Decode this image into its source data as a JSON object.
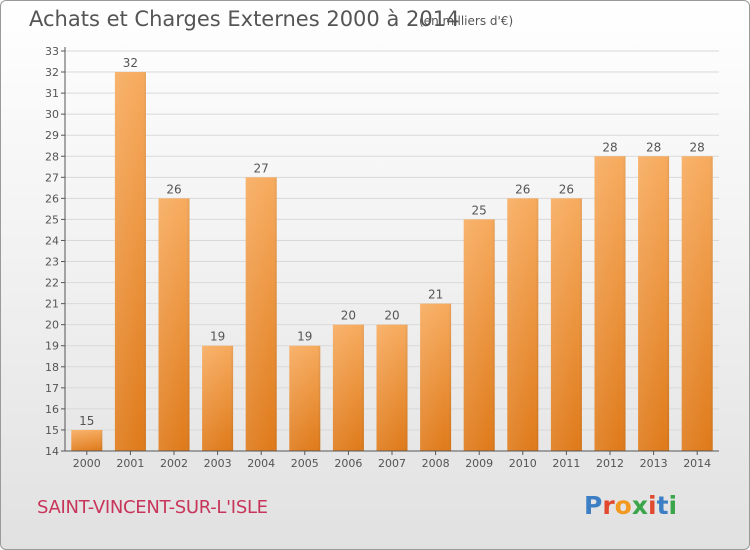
{
  "title": "Achats et Charges Externes 2000 à 2014",
  "unit_label": "(en milliers d'€)",
  "location": "SAINT-VINCENT-SUR-L'ISLE",
  "logo": {
    "text": "Proxiti",
    "letter_colors": [
      "#3d7fc4",
      "#e0492e",
      "#f29a1f",
      "#3aa54a",
      "#e0492e",
      "#3d7fc4",
      "#3aa54a"
    ]
  },
  "colors": {
    "bar_light": "#f6a556",
    "bar_dark": "#e07c1c",
    "axis": "#555555",
    "grid": "#d9d9d9",
    "text": "#555555",
    "location": "#c8355a"
  },
  "chart_data": {
    "type": "bar",
    "title": "Achats et Charges Externes 2000 à 2014",
    "subtitle": "(en milliers d'€)",
    "xlabel": "",
    "ylabel": "",
    "categories": [
      "2000",
      "2001",
      "2002",
      "2003",
      "2004",
      "2005",
      "2006",
      "2007",
      "2008",
      "2009",
      "2010",
      "2011",
      "2012",
      "2013",
      "2014"
    ],
    "values": [
      15,
      32,
      26,
      19,
      27,
      19,
      20,
      20,
      21,
      25,
      26,
      26,
      28,
      28,
      28
    ],
    "data_labels": [
      "15",
      "32",
      "26",
      "19",
      "27",
      "19",
      "20",
      "20",
      "21",
      "25",
      "26",
      "26",
      "28",
      "28",
      "28"
    ],
    "ylim": [
      14,
      33
    ],
    "yticks": [
      14,
      15,
      16,
      17,
      18,
      19,
      20,
      21,
      22,
      23,
      24,
      25,
      26,
      27,
      28,
      29,
      30,
      31,
      32,
      33
    ],
    "grid": true,
    "legend": "none"
  }
}
